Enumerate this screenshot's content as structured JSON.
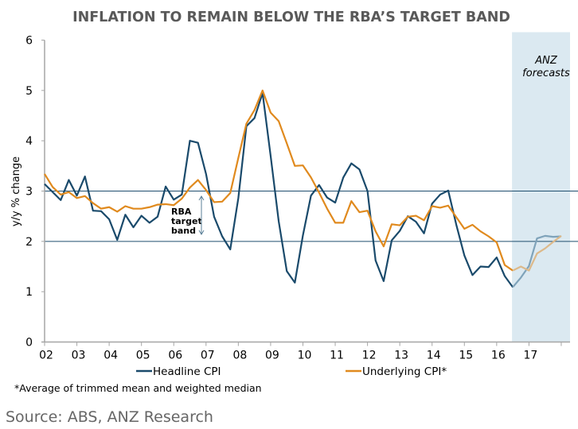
{
  "chart_data": {
    "type": "line",
    "title": "INFLATION TO REMAIN BELOW THE RBA’S TARGET BAND",
    "ylabel": "y/y % change",
    "xlabel": "",
    "ylim": [
      0,
      6
    ],
    "yticks": [
      "0",
      "1",
      "2",
      "3",
      "4",
      "5",
      "6"
    ],
    "xticks": [
      "02",
      "03",
      "04",
      "05",
      "06",
      "07",
      "08",
      "09",
      "10",
      "11",
      "12",
      "13",
      "14",
      "15",
      "16",
      "17"
    ],
    "frequency": "quarterly",
    "x_start": "2002Q1",
    "forecast_from": "2016Q3",
    "forecast_label": [
      "ANZ",
      "forecasts"
    ],
    "band": {
      "low": 2,
      "high": 3,
      "label": [
        "RBA",
        "target",
        "band"
      ]
    },
    "grid": false,
    "legend_position": "bottom",
    "series": [
      {
        "name": "Headline CPI",
        "color": "#1a4a6b",
        "values": [
          3.14,
          2.98,
          2.82,
          3.22,
          2.91,
          3.29,
          2.61,
          2.6,
          2.44,
          2.03,
          2.53,
          2.28,
          2.51,
          2.37,
          2.49,
          3.09,
          2.83,
          2.93,
          4.0,
          3.96,
          3.34,
          2.49,
          2.1,
          1.84,
          2.86,
          4.29,
          4.45,
          4.95,
          3.7,
          2.4,
          1.41,
          1.18,
          2.12,
          2.91,
          3.12,
          2.87,
          2.77,
          3.27,
          3.55,
          3.43,
          3.0,
          1.62,
          1.21,
          2.02,
          2.21,
          2.5,
          2.39,
          2.16,
          2.75,
          2.93,
          3.01,
          2.33,
          1.72,
          1.33,
          1.5,
          1.49,
          1.68,
          1.31,
          1.09,
          1.28,
          1.51,
          2.06,
          2.11,
          2.09,
          2.1
        ]
      },
      {
        "name": "Underlying CPI*",
        "color": "#e08a1e",
        "values": [
          3.34,
          3.08,
          2.93,
          2.98,
          2.86,
          2.9,
          2.76,
          2.65,
          2.68,
          2.59,
          2.7,
          2.65,
          2.65,
          2.68,
          2.73,
          2.74,
          2.72,
          2.85,
          3.07,
          3.22,
          3.02,
          2.78,
          2.79,
          2.96,
          3.66,
          4.34,
          4.61,
          5.0,
          4.56,
          4.39,
          3.95,
          3.5,
          3.51,
          3.27,
          2.97,
          2.65,
          2.37,
          2.37,
          2.8,
          2.58,
          2.61,
          2.2,
          1.9,
          2.34,
          2.32,
          2.49,
          2.51,
          2.42,
          2.7,
          2.67,
          2.71,
          2.48,
          2.25,
          2.33,
          2.2,
          2.1,
          1.98,
          1.53,
          1.42,
          1.5,
          1.42,
          1.76,
          1.86,
          1.99,
          2.11
        ]
      }
    ],
    "footnote": "*Average of trimmed mean and weighted median",
    "source": "Source: ABS, ANZ Research",
    "colors": {
      "forecast_shade": "#dbe9f1",
      "band_line": "#1f4e6e",
      "axis": "#a6a6a6"
    }
  }
}
